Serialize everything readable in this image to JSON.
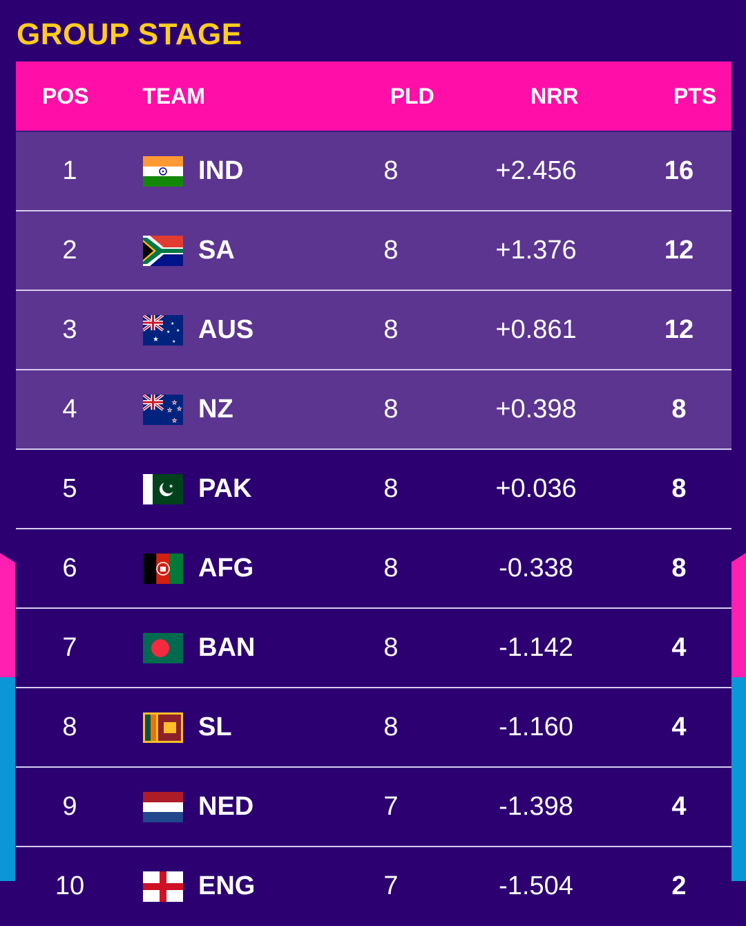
{
  "title": "GROUP STAGE",
  "colors": {
    "background": "#2c0071",
    "header": "#ff0fa8",
    "title": "#ffcc1f",
    "qualified_row": "#5c3590"
  },
  "columns": {
    "pos": "POS",
    "team": "TEAM",
    "pld": "PLD",
    "nrr": "NRR",
    "pts": "PTS"
  },
  "rows": [
    {
      "pos": "1",
      "team": "IND",
      "flag": "india-flag-icon",
      "pld": "8",
      "nrr": "+2.456",
      "pts": "16"
    },
    {
      "pos": "2",
      "team": "SA",
      "flag": "south-africa-flag-icon",
      "pld": "8",
      "nrr": "+1.376",
      "pts": "12"
    },
    {
      "pos": "3",
      "team": "AUS",
      "flag": "australia-flag-icon",
      "pld": "8",
      "nrr": "+0.861",
      "pts": "12"
    },
    {
      "pos": "4",
      "team": "NZ",
      "flag": "new-zealand-flag-icon",
      "pld": "8",
      "nrr": "+0.398",
      "pts": "8"
    },
    {
      "pos": "5",
      "team": "PAK",
      "flag": "pakistan-flag-icon",
      "pld": "8",
      "nrr": "+0.036",
      "pts": "8"
    },
    {
      "pos": "6",
      "team": "AFG",
      "flag": "afghanistan-flag-icon",
      "pld": "8",
      "nrr": "-0.338",
      "pts": "8"
    },
    {
      "pos": "7",
      "team": "BAN",
      "flag": "bangladesh-flag-icon",
      "pld": "8",
      "nrr": "-1.142",
      "pts": "4"
    },
    {
      "pos": "8",
      "team": "SL",
      "flag": "sri-lanka-flag-icon",
      "pld": "8",
      "nrr": "-1.160",
      "pts": "4"
    },
    {
      "pos": "9",
      "team": "NED",
      "flag": "netherlands-flag-icon",
      "pld": "7",
      "nrr": "-1.398",
      "pts": "4"
    },
    {
      "pos": "10",
      "team": "ENG",
      "flag": "england-flag-icon",
      "pld": "7",
      "nrr": "-1.504",
      "pts": "2"
    }
  ]
}
